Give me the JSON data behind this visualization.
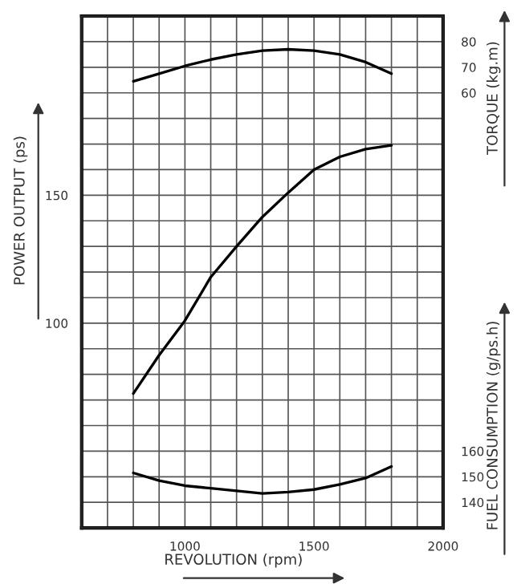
{
  "chart_data": {
    "type": "line",
    "xlabel": "REVOLUTION (rpm)",
    "ylabel": "POWER OUTPUT (ps)",
    "y2label": "TORQUE (kg.m)",
    "y3label": "FUEL CONSUMPTION (g/ps.h)",
    "x": [
      800,
      900,
      1000,
      1100,
      1200,
      1300,
      1400,
      1500,
      1600,
      1700,
      1800
    ],
    "series": [
      {
        "color": "#000000",
        "values": [
          72.5,
          87.5,
          101,
          118,
          130,
          141.5,
          151,
          160,
          165,
          168,
          169.5
        ]
      },
      {
        "color": "#000000",
        "axis": "y2",
        "values": [
          64.5,
          67.5,
          70.5,
          73,
          75,
          76.5,
          77,
          76.5,
          75,
          72,
          67.5
        ]
      },
      {
        "color": "#000000",
        "axis": "y3",
        "values": [
          151.5,
          148.5,
          146.5,
          145.5,
          144.5,
          143.5,
          144,
          145,
          147,
          149.5,
          154
        ]
      }
    ],
    "xlim": [
      600,
      2000
    ],
    "xticks": [
      {
        "value": 600,
        "label": null
      },
      {
        "value": 700,
        "label": null
      },
      {
        "value": 800,
        "label": null
      },
      {
        "value": 900,
        "label": null
      },
      1000,
      {
        "value": 1100,
        "label": null
      },
      {
        "value": 1200,
        "label": null
      },
      {
        "value": 1300,
        "label": null
      },
      {
        "value": 1400,
        "label": null
      },
      1500,
      {
        "value": 1600,
        "label": null
      },
      {
        "value": 1700,
        "label": null
      },
      {
        "value": 1800,
        "label": null
      },
      {
        "value": 1900,
        "label": null
      },
      2000
    ],
    "ylim": [
      20,
      220
    ],
    "yticks": [
      {
        "value": 20,
        "label": null
      },
      {
        "value": 30,
        "label": null
      },
      {
        "value": 40,
        "label": null
      },
      {
        "value": 50,
        "label": null
      },
      {
        "value": 60,
        "label": null
      },
      {
        "value": 70,
        "label": null
      },
      {
        "value": 80,
        "label": null
      },
      {
        "value": 90,
        "label": null
      },
      100,
      {
        "value": 110,
        "label": null
      },
      {
        "value": 120,
        "label": null
      },
      {
        "value": 130,
        "label": null
      },
      {
        "value": 140,
        "label": null
      },
      150,
      {
        "value": 160,
        "label": null
      },
      {
        "value": 170,
        "label": null
      },
      {
        "value": 180,
        "label": null
      },
      {
        "value": 190,
        "label": null
      },
      {
        "value": 200,
        "label": null
      },
      {
        "value": 210,
        "label": null
      },
      {
        "value": 220,
        "label": null
      }
    ],
    "y2lim": [
      -110,
      90
    ],
    "y2ticks": [
      60,
      70,
      80
    ],
    "y3lim": [
      130,
      330
    ],
    "y3ticks": [
      140,
      150,
      160
    ],
    "grid": true,
    "marker": "none",
    "line_style": "solid"
  }
}
